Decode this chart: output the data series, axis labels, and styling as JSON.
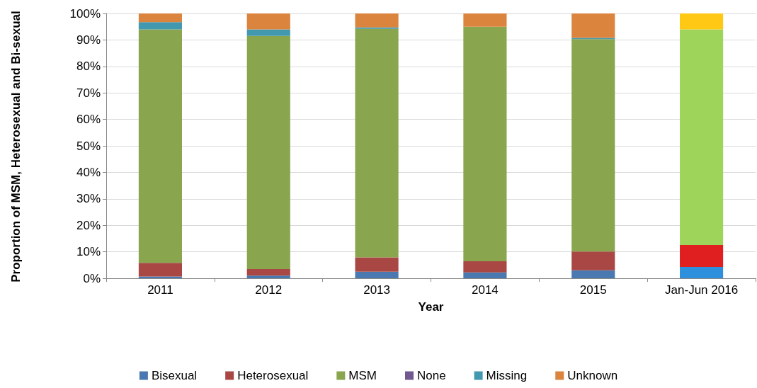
{
  "chart_data": {
    "type": "bar",
    "stacked": true,
    "xlabel": "Year",
    "ylabel": "Proportion of MSM, Heterosexual and Bi-sexual",
    "categories": [
      "2011",
      "2012",
      "2013",
      "2014",
      "2015",
      "Jan-Jun 2016"
    ],
    "series": [
      {
        "name": "Bisexual",
        "color": "#4a78b0",
        "colors": [
          "#4a78b0",
          "#4a78b0",
          "#4a78b0",
          "#4a78b0",
          "#4a78b0",
          "#2e8fdc"
        ],
        "values": [
          0.7,
          1.0,
          2.5,
          2.2,
          3.0,
          4.3
        ]
      },
      {
        "name": "Heterosexual",
        "color": "#a84744",
        "colors": [
          "#a84744",
          "#a84744",
          "#a84744",
          "#a84744",
          "#a84744",
          "#e02020"
        ],
        "values": [
          5.1,
          2.5,
          5.4,
          4.2,
          7.1,
          8.3
        ]
      },
      {
        "name": "MSM",
        "color": "#89a54e",
        "colors": [
          "#89a54e",
          "#89a54e",
          "#89a54e",
          "#89a54e",
          "#89a54e",
          "#9fd45a"
        ],
        "values": [
          88.2,
          88.0,
          86.3,
          88.6,
          80.2,
          81.4
        ]
      },
      {
        "name": "None",
        "color": "#71588f",
        "values": [
          0,
          0,
          0,
          0,
          null,
          0
        ]
      },
      {
        "name": "Missing",
        "color": "#4198af",
        "values": [
          2.7,
          2.5,
          0.5,
          0,
          0.5,
          0
        ]
      },
      {
        "name": "Unknown",
        "color": "#db843d",
        "colors": [
          "#db843d",
          "#db843d",
          "#db843d",
          "#db843d",
          "#db843d",
          "#ffc814"
        ],
        "values": [
          3.3,
          6.0,
          5.3,
          5.0,
          9.2,
          6.0
        ]
      }
    ],
    "ylim": [
      0,
      100
    ],
    "yticks": [
      {
        "value": 0,
        "label": "0%"
      },
      {
        "value": 10,
        "label": "10%"
      },
      {
        "value": 20,
        "label": "20%"
      },
      {
        "value": 30,
        "label": "30%"
      },
      {
        "value": 40,
        "label": "40%"
      },
      {
        "value": 50,
        "label": "50%"
      },
      {
        "value": 60,
        "label": "60%"
      },
      {
        "value": 70,
        "label": "70%"
      },
      {
        "value": 80,
        "label": "80%"
      },
      {
        "value": 90,
        "label": "90%"
      },
      {
        "value": 100,
        "label": "100%"
      }
    ],
    "grid": "y",
    "legend": "bottom"
  }
}
